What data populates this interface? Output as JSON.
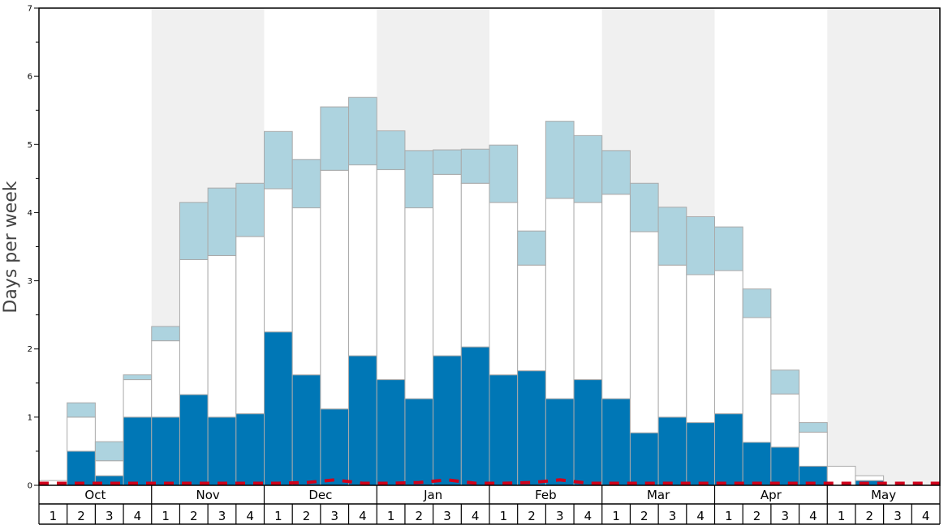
{
  "chart_data": {
    "type": "bar",
    "stacked": true,
    "title": "",
    "ylabel": "Days per week",
    "xlabel": "",
    "ylim": [
      0,
      7
    ],
    "yticks": [
      "0",
      "1",
      "2",
      "3",
      "4",
      "5",
      "6",
      "7"
    ],
    "months": [
      "Oct",
      "Nov",
      "Dec",
      "Jan",
      "Feb",
      "Mar",
      "Apr",
      "May"
    ],
    "weeks_per_month": [
      "1",
      "2",
      "3",
      "4"
    ],
    "shaded_months": [
      "Nov",
      "Jan",
      "Mar",
      "May"
    ],
    "colors": {
      "lower": "#0077b6",
      "middle": "#ffffff",
      "upper": "#add3df",
      "bar_border": "#aaaaaa",
      "shade": "#f0f0f0",
      "dashed_line": "#d0021b"
    },
    "categories": [
      "Oct 1",
      "Oct 2",
      "Oct 3",
      "Oct 4",
      "Nov 1",
      "Nov 2",
      "Nov 3",
      "Nov 4",
      "Dec 1",
      "Dec 2",
      "Dec 3",
      "Dec 4",
      "Jan 1",
      "Jan 2",
      "Jan 3",
      "Jan 4",
      "Feb 1",
      "Feb 2",
      "Feb 3",
      "Feb 4",
      "Mar 1",
      "Mar 2",
      "Mar 3",
      "Mar 4",
      "Apr 1",
      "Apr 2",
      "Apr 3",
      "Apr 4",
      "May 1",
      "May 2",
      "May 3",
      "May 4"
    ],
    "series": [
      {
        "key": "lower",
        "values": [
          0.0,
          0.5,
          0.14,
          1.0,
          1.0,
          1.33,
          1.0,
          1.05,
          2.25,
          1.62,
          1.12,
          1.9,
          1.55,
          1.27,
          1.9,
          2.03,
          1.62,
          1.68,
          1.27,
          1.55,
          1.27,
          0.77,
          1.0,
          0.92,
          1.05,
          0.63,
          0.56,
          0.28,
          0.0,
          0.07,
          0.0,
          0.0
        ]
      },
      {
        "key": "middle",
        "values": [
          0.07,
          0.5,
          0.22,
          0.55,
          1.12,
          1.98,
          2.37,
          2.6,
          2.1,
          2.45,
          3.5,
          2.8,
          3.08,
          2.8,
          2.66,
          2.4,
          2.53,
          1.55,
          2.94,
          2.6,
          3.0,
          2.95,
          2.23,
          2.17,
          2.1,
          1.83,
          0.78,
          0.5,
          0.28,
          0.07,
          0.0,
          0.0
        ]
      },
      {
        "key": "upper",
        "values": [
          0.0,
          0.21,
          0.28,
          0.07,
          0.21,
          0.84,
          0.99,
          0.78,
          0.84,
          0.71,
          0.93,
          0.99,
          0.57,
          0.84,
          0.36,
          0.5,
          0.84,
          0.5,
          1.13,
          0.98,
          0.64,
          0.71,
          0.85,
          0.85,
          0.64,
          0.42,
          0.35,
          0.14,
          0.0,
          0.0,
          0.0,
          0.0
        ]
      }
    ],
    "dashed_line": [
      0.03,
      0.03,
      0.03,
      0.03,
      0.03,
      0.03,
      0.03,
      0.03,
      0.03,
      0.04,
      0.08,
      0.03,
      0.03,
      0.04,
      0.08,
      0.03,
      0.03,
      0.04,
      0.08,
      0.03,
      0.03,
      0.03,
      0.03,
      0.03,
      0.03,
      0.03,
      0.03,
      0.03,
      0.03,
      0.03,
      0.03,
      0.03
    ],
    "grid": false,
    "legend": "none"
  }
}
